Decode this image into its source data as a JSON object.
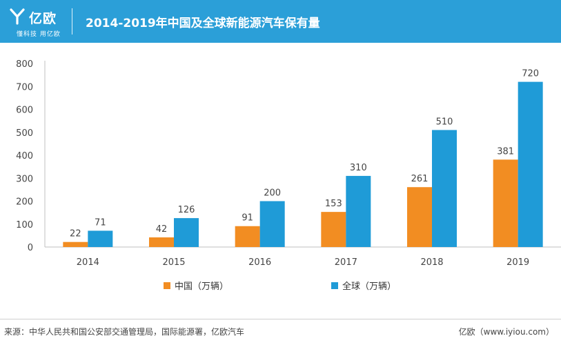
{
  "header": {
    "brand": "亿欧",
    "tagline": "懂科技 用亿欧",
    "title": "2014-2019年中国及全球新能源汽车保有量"
  },
  "colors": {
    "header_bg": "#2b9fd8",
    "china": "#f28d22",
    "global": "#1f9bd7"
  },
  "chart_data": {
    "type": "bar",
    "title": "2014-2019年中国及全球新能源汽车保有量",
    "categories": [
      "2014",
      "2015",
      "2016",
      "2017",
      "2018",
      "2019"
    ],
    "series": [
      {
        "name": "中国（万辆）",
        "values": [
          22,
          42,
          91,
          153,
          261,
          381
        ]
      },
      {
        "name": "全球（万辆）",
        "values": [
          71,
          126,
          200,
          310,
          510,
          720
        ]
      }
    ],
    "y_ticks": [
      "0",
      "100",
      "200",
      "300",
      "400",
      "500",
      "600",
      "700",
      "800"
    ],
    "ylim": [
      0,
      800
    ],
    "xlabel": "",
    "ylabel": "",
    "legend_position": "bottom-left",
    "grid": false
  },
  "legend": {
    "china_label": "中国（万辆）",
    "global_label": "全球（万辆）"
  },
  "footer": {
    "source": "来源：中华人民共和国公安部交通管理局，国际能源署，亿欧汽车",
    "site": "亿欧（www.iyiou.com）"
  }
}
